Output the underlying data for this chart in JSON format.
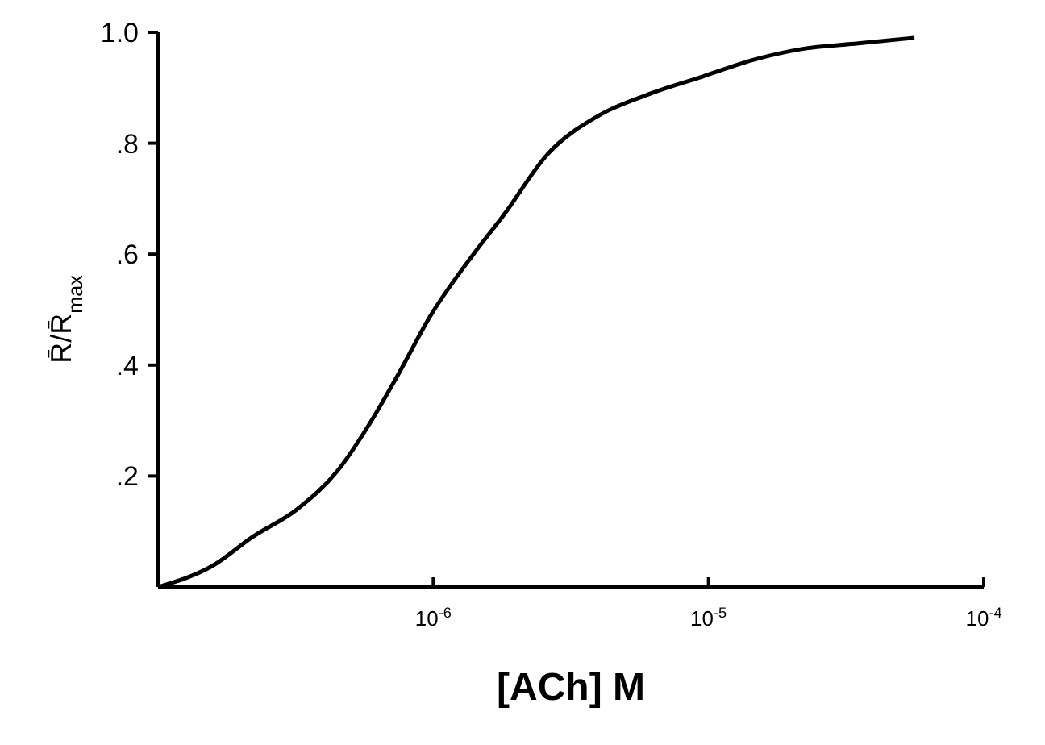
{
  "chart_data": {
    "type": "line",
    "xlabel": "[ACh] M",
    "ylabel": "R̄/R̄$_{max}$",
    "log": "x",
    "xlim": [
      1e-07,
      0.0001
    ],
    "xticks": [
      {
        "value": 1e-06,
        "label": "10$^{-6}$"
      },
      {
        "value": 1e-05,
        "label": "10$^{-5}$"
      },
      {
        "value": 0.0001,
        "label": "10$^{-4}$"
      }
    ],
    "ylim": [
      0,
      1
    ],
    "yticks": [
      {
        "value": 0.2,
        "label": ".2"
      },
      {
        "value": 0.4,
        "label": ".4"
      },
      {
        "value": 0.6,
        "label": ".6"
      },
      {
        "value": 0.8,
        "label": ".8"
      },
      {
        "value": 1,
        "label": "1.0"
      }
    ],
    "marker": "none",
    "line_style": "solid",
    "series": [
      {
        "color": "#000000",
        "x": [
          1e-07,
          1.6e-07,
          2.2e-07,
          3.2e-07,
          4.5e-07,
          5.8e-07,
          7.4e-07,
          9.8e-07,
          1.4e-06,
          1.8e-06,
          2.6e-06,
          4e-06,
          6.2e-06,
          9.5e-06,
          1.45e-05,
          2.2e-05,
          3.5e-05,
          5.6e-05
        ],
        "values": [
          0,
          0.04,
          0.09,
          0.14,
          0.21,
          0.29,
          0.38,
          0.49,
          0.6,
          0.67,
          0.78,
          0.85,
          0.89,
          0.92,
          0.95,
          0.97,
          0.98,
          0.99
        ]
      }
    ]
  }
}
